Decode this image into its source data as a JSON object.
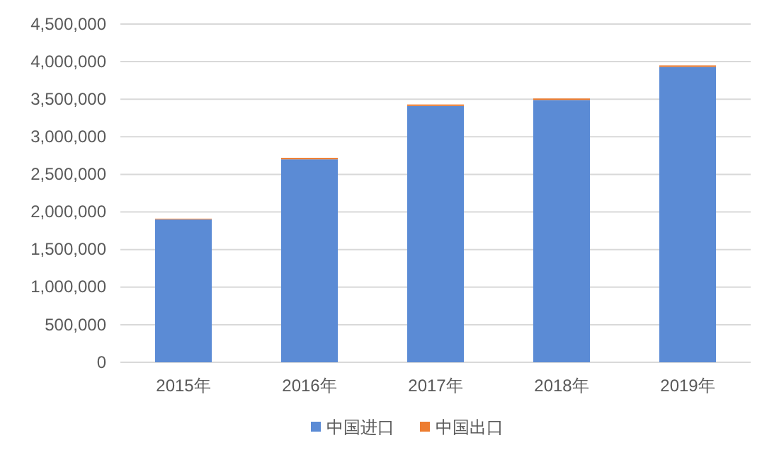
{
  "chart_data": {
    "type": "bar",
    "stacked": true,
    "categories": [
      "2015年",
      "2016年",
      "2017年",
      "2018年",
      "2019年"
    ],
    "series": [
      {
        "name": "中国进口",
        "color": "#5b8bd5",
        "values": [
          1900000,
          2700000,
          3410000,
          3490000,
          3930000
        ]
      },
      {
        "name": "中国出口",
        "color": "#ed7d31",
        "values": [
          10000,
          20000,
          20000,
          20000,
          20000
        ]
      }
    ],
    "ylim": [
      0,
      4500000
    ],
    "yticks": [
      {
        "value": 0,
        "label": "0"
      },
      {
        "value": 500000,
        "label": "500,000"
      },
      {
        "value": 1000000,
        "label": "1,000,000"
      },
      {
        "value": 1500000,
        "label": "1,500,000"
      },
      {
        "value": 2000000,
        "label": "2,000,000"
      },
      {
        "value": 2500000,
        "label": "2,500,000"
      },
      {
        "value": 3000000,
        "label": "3,000,000"
      },
      {
        "value": 3500000,
        "label": "3,500,000"
      },
      {
        "value": 4000000,
        "label": "4,000,000"
      },
      {
        "value": 4500000,
        "label": "4,500,000"
      }
    ],
    "grid": "y",
    "legend": "bottom"
  }
}
